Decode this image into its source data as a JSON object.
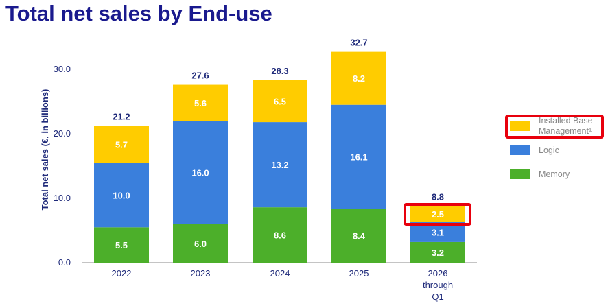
{
  "chart_data": {
    "type": "bar",
    "stacked": true,
    "title": "Total net sales by End-use",
    "ylabel": "Total net sales (€, in billions)",
    "xlabel": "",
    "ylim": [
      0,
      30
    ],
    "yticks": [
      "0.0",
      "10.0",
      "20.0",
      "30.0"
    ],
    "categories": [
      "2022",
      "2023",
      "2024",
      "2025",
      "2026 through Q1"
    ],
    "series": [
      {
        "name": "Memory",
        "color": "#4caf2a",
        "values": [
          5.5,
          6.0,
          8.6,
          8.4,
          3.2
        ]
      },
      {
        "name": "Logic",
        "color": "#3a7fdc",
        "values": [
          10.0,
          16.0,
          13.2,
          16.1,
          3.1
        ]
      },
      {
        "name": "Installed Base Management¹",
        "color": "#ffcc00",
        "values": [
          5.7,
          5.6,
          6.5,
          8.2,
          2.5
        ]
      }
    ],
    "totals": [
      21.2,
      27.6,
      28.3,
      32.7,
      8.8
    ],
    "legend": {
      "placement": "right",
      "order": [
        "Installed Base Management¹",
        "Logic",
        "Memory"
      ]
    },
    "highlight_color": "#e8000d"
  }
}
